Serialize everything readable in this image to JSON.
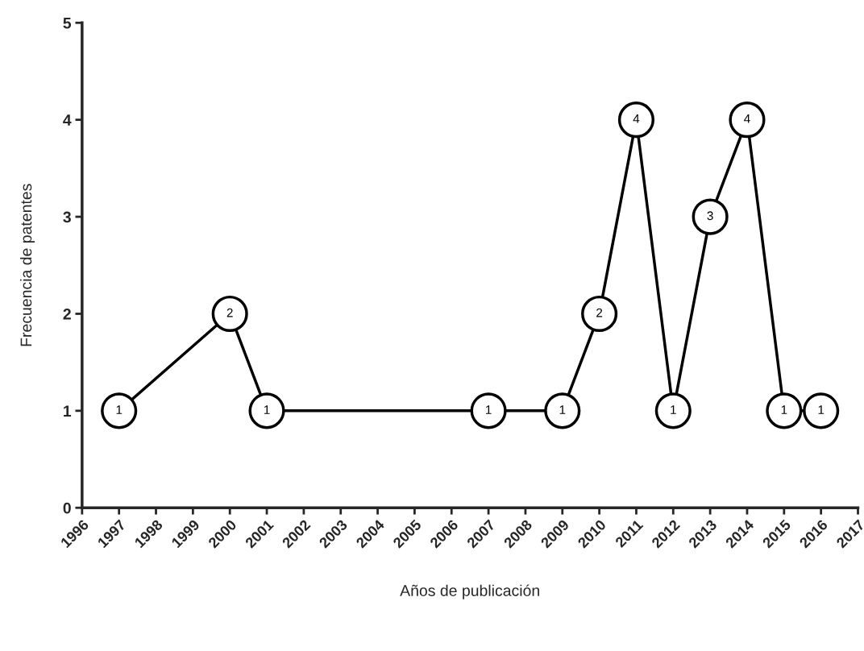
{
  "chart_data": {
    "type": "line",
    "xlabel": "Años de publicación",
    "ylabel": "Frecuencia de patentes",
    "x": [
      1997,
      2000,
      2001,
      2007,
      2009,
      2010,
      2011,
      2012,
      2013,
      2014,
      2015,
      2016
    ],
    "series": [
      {
        "color": "#000000",
        "values": [
          1,
          2,
          1,
          1,
          1,
          2,
          4,
          1,
          3,
          4,
          1,
          1
        ]
      }
    ],
    "xlim": [
      1996,
      2017
    ],
    "xticks": [
      1996,
      1997,
      1998,
      1999,
      2000,
      2001,
      2002,
      2003,
      2004,
      2005,
      2006,
      2007,
      2008,
      2009,
      2010,
      2011,
      2012,
      2013,
      2014,
      2015,
      2016,
      2017
    ],
    "ylim": [
      0,
      5
    ],
    "yticks": [
      0,
      1,
      2,
      3,
      4,
      5
    ],
    "marker": "circle",
    "data_labels": true,
    "grid": false,
    "legend": false
  }
}
